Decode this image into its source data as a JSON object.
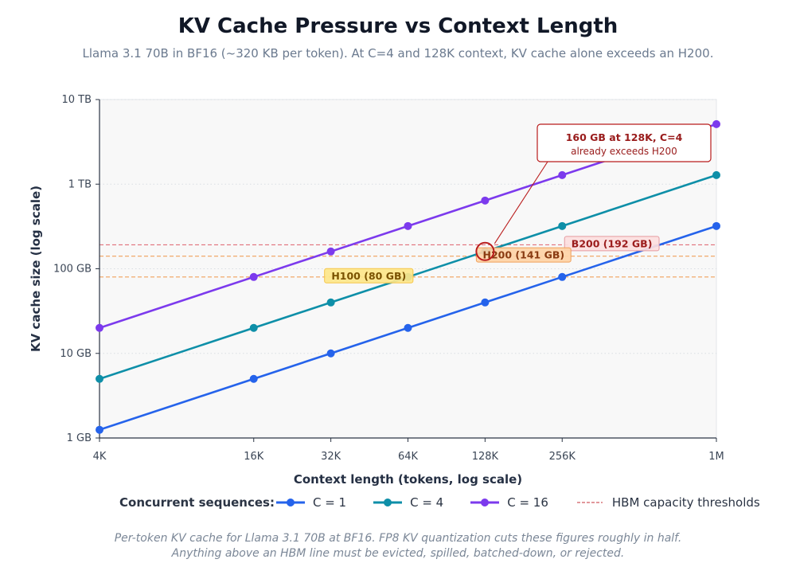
{
  "title": "KV Cache Pressure vs Context Length",
  "subtitle": "Llama 3.1 70B in BF16 (~320 KB per token). At C=4 and 128K context, KV cache alone exceeds an H200.",
  "footnote": {
    "line1": "Per-token KV cache for Llama 3.1 70B at BF16. FP8 KV quantization cuts these figures roughly in half.",
    "line2": "Anything above an HBM line must be evicted, spilled, batched-down, or rejected."
  },
  "legend": {
    "title": "Concurrent sequences:",
    "threshold_label": "HBM capacity thresholds"
  },
  "chart_data": {
    "type": "line",
    "xlabel": "Context length (tokens, log scale)",
    "ylabel": "KV cache size (log scale)",
    "x_scale": "log2",
    "y_scale": "log10",
    "x_unit": "K tokens",
    "y_unit": "GB",
    "x": [
      4,
      16,
      32,
      64,
      128,
      256,
      1024
    ],
    "x_tick_labels": [
      "4K",
      "16K",
      "32K",
      "64K",
      "128K",
      "256K",
      "1M"
    ],
    "y_ticks": [
      1,
      10,
      100,
      1000,
      10000
    ],
    "y_tick_labels": [
      "1 GB",
      "10 GB",
      "100 GB",
      "1 TB",
      "10 TB"
    ],
    "xlim": [
      4,
      1024
    ],
    "ylim": [
      1,
      10000
    ],
    "grid": true,
    "series": [
      {
        "name": "C = 1",
        "color": "#2563eb",
        "values": [
          1.25,
          5,
          10,
          20,
          40,
          80,
          320
        ]
      },
      {
        "name": "C = 4",
        "color": "#0e8fa8",
        "values": [
          5,
          20,
          40,
          80,
          160,
          320,
          1280
        ]
      },
      {
        "name": "C = 16",
        "color": "#7c3aed",
        "values": [
          20,
          80,
          160,
          320,
          640,
          1280,
          5120
        ]
      }
    ],
    "thresholds": [
      {
        "label": "B200 (192 GB)",
        "value": 192,
        "line_color": "#e0707a",
        "box_fill": "#fcdede",
        "box_stroke": "#e59aa0",
        "text_color": "#9b1c1c",
        "at_x": 400
      },
      {
        "label": "H200 (141 GB)",
        "value": 141,
        "line_color": "#f0a05a",
        "box_fill": "#fed3a6",
        "box_stroke": "#f0a05a",
        "text_color": "#8a3b12",
        "at_x": 181
      },
      {
        "label": "H100 (80 GB)",
        "value": 80,
        "line_color": "#f0a05a",
        "box_fill": "#fde68a",
        "box_stroke": "#f5c64a",
        "text_color": "#7a5200",
        "at_x": 45
      }
    ],
    "annotation": {
      "line1": "160 GB at 128K, C=4",
      "line2": "already exceeds H200",
      "x": 128,
      "y": 160,
      "color": "#b91c1c"
    }
  }
}
